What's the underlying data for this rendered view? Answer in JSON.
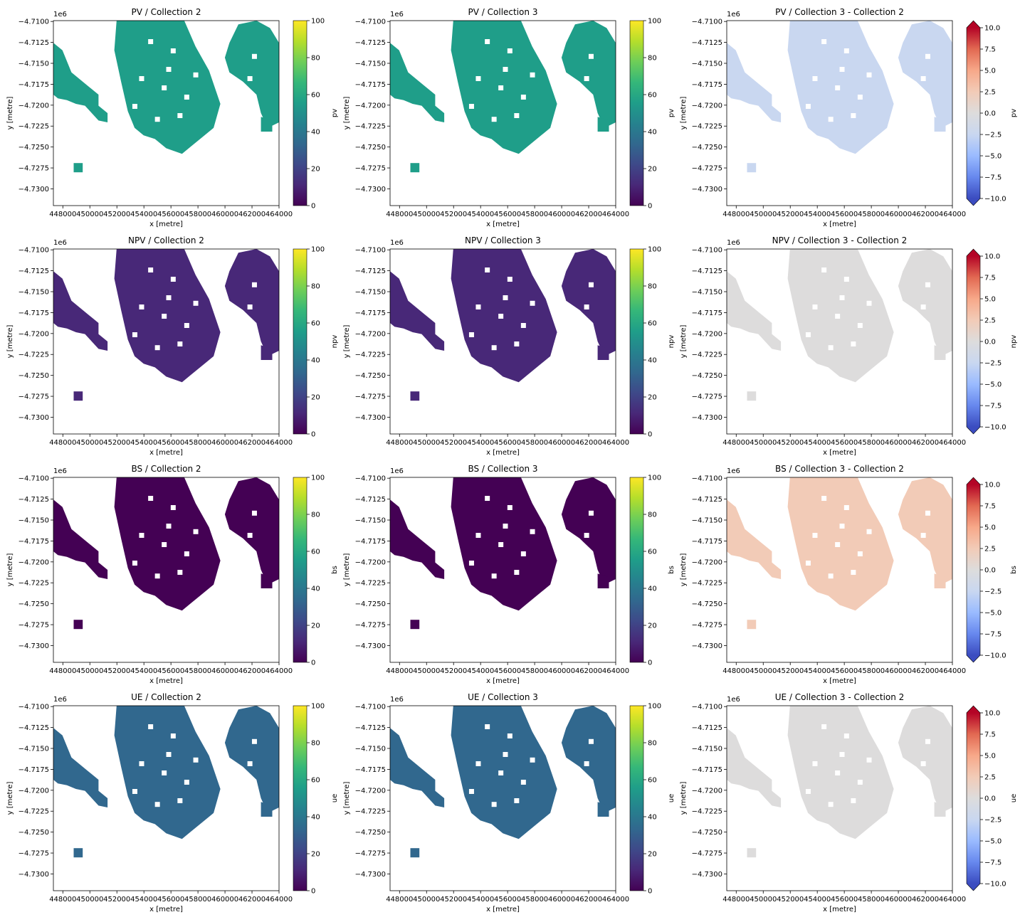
{
  "figure": {
    "x_ticks": [
      "448000",
      "450000",
      "452000",
      "454000",
      "456000",
      "458000",
      "460000",
      "462000",
      "464000"
    ],
    "y_ticks": [
      "−4.7100",
      "−4.7125",
      "−4.7150",
      "−4.7175",
      "−4.7200",
      "−4.7225",
      "−4.7250",
      "−4.7275",
      "−4.7300"
    ],
    "y_offset": "1e6",
    "xlabel": "x [metre]",
    "ylabel": "y [metre]",
    "seq_cbar_ticks": [
      "0",
      "20",
      "40",
      "60",
      "80",
      "100"
    ],
    "div_cbar_ticks": [
      "−10.0",
      "−7.5",
      "−5.0",
      "−2.5",
      "0.0",
      "2.5",
      "5.0",
      "7.5",
      "10.0"
    ],
    "viridis": [
      "#440154",
      "#482878",
      "#3e4989",
      "#31688e",
      "#26828e",
      "#1f9e89",
      "#35b779",
      "#6ece58",
      "#b5de2b",
      "#fde725"
    ],
    "coolwarm": [
      "#3b4cc0",
      "#6788ee",
      "#9abbff",
      "#c9d7f0",
      "#dddcdc",
      "#f2cbb7",
      "#f7a889",
      "#e26952",
      "#b40426"
    ]
  },
  "rows": [
    {
      "var": "pv",
      "titles": [
        "PV / Collection 2",
        "PV / Collection 3",
        "PV / Collection 3 - Collection 2"
      ],
      "cbar_labels": [
        "pv",
        "pv",
        "pv"
      ]
    },
    {
      "var": "npv",
      "titles": [
        "NPV / Collection 2",
        "NPV / Collection 3",
        "NPV / Collection 3 - Collection 2"
      ],
      "cbar_labels": [
        "npv",
        "npv",
        "npv"
      ]
    },
    {
      "var": "bs",
      "titles": [
        "BS / Collection 2",
        "BS / Collection 3",
        "BS / Collection 3 - Collection 2"
      ],
      "cbar_labels": [
        "bs",
        "bs",
        "bs"
      ]
    },
    {
      "var": "ue",
      "titles": [
        "UE / Collection 2",
        "UE / Collection 3",
        "UE / Collection 3 - Collection 2"
      ],
      "cbar_labels": [
        "ue",
        "ue",
        "ue"
      ]
    }
  ],
  "chart_data": {
    "type": "heatmap",
    "layout": "4x3 grid of raster maps",
    "xlabel": "x [metre]",
    "ylabel": "y [metre]",
    "xlim": [
      447300,
      464000
    ],
    "ylim": [
      -4732000,
      -4709900
    ],
    "y_offset_text": "1e6",
    "sequential_colorbar": {
      "colormap": "viridis",
      "range": [
        0,
        100
      ]
    },
    "difference_colorbar": {
      "colormap": "coolwarm",
      "range": [
        -10,
        10
      ],
      "extend": "both"
    },
    "panels": [
      {
        "row": 0,
        "variable": "pv",
        "columns": [
          "Collection 2",
          "Collection 3",
          "Collection 3 - Collection 2"
        ],
        "typical_value": [
          60,
          60,
          -2
        ]
      },
      {
        "row": 1,
        "variable": "npv",
        "columns": [
          "Collection 2",
          "Collection 3",
          "Collection 3 - Collection 2"
        ],
        "typical_value": [
          15,
          15,
          1
        ]
      },
      {
        "row": 2,
        "variable": "bs",
        "columns": [
          "Collection 2",
          "Collection 3",
          "Collection 3 - Collection 2"
        ],
        "typical_value": [
          3,
          3,
          2.5
        ]
      },
      {
        "row": 3,
        "variable": "ue",
        "columns": [
          "Collection 2",
          "Collection 3",
          "Collection 3 - Collection 2"
        ],
        "typical_value": [
          28,
          28,
          0.5
        ]
      }
    ]
  }
}
